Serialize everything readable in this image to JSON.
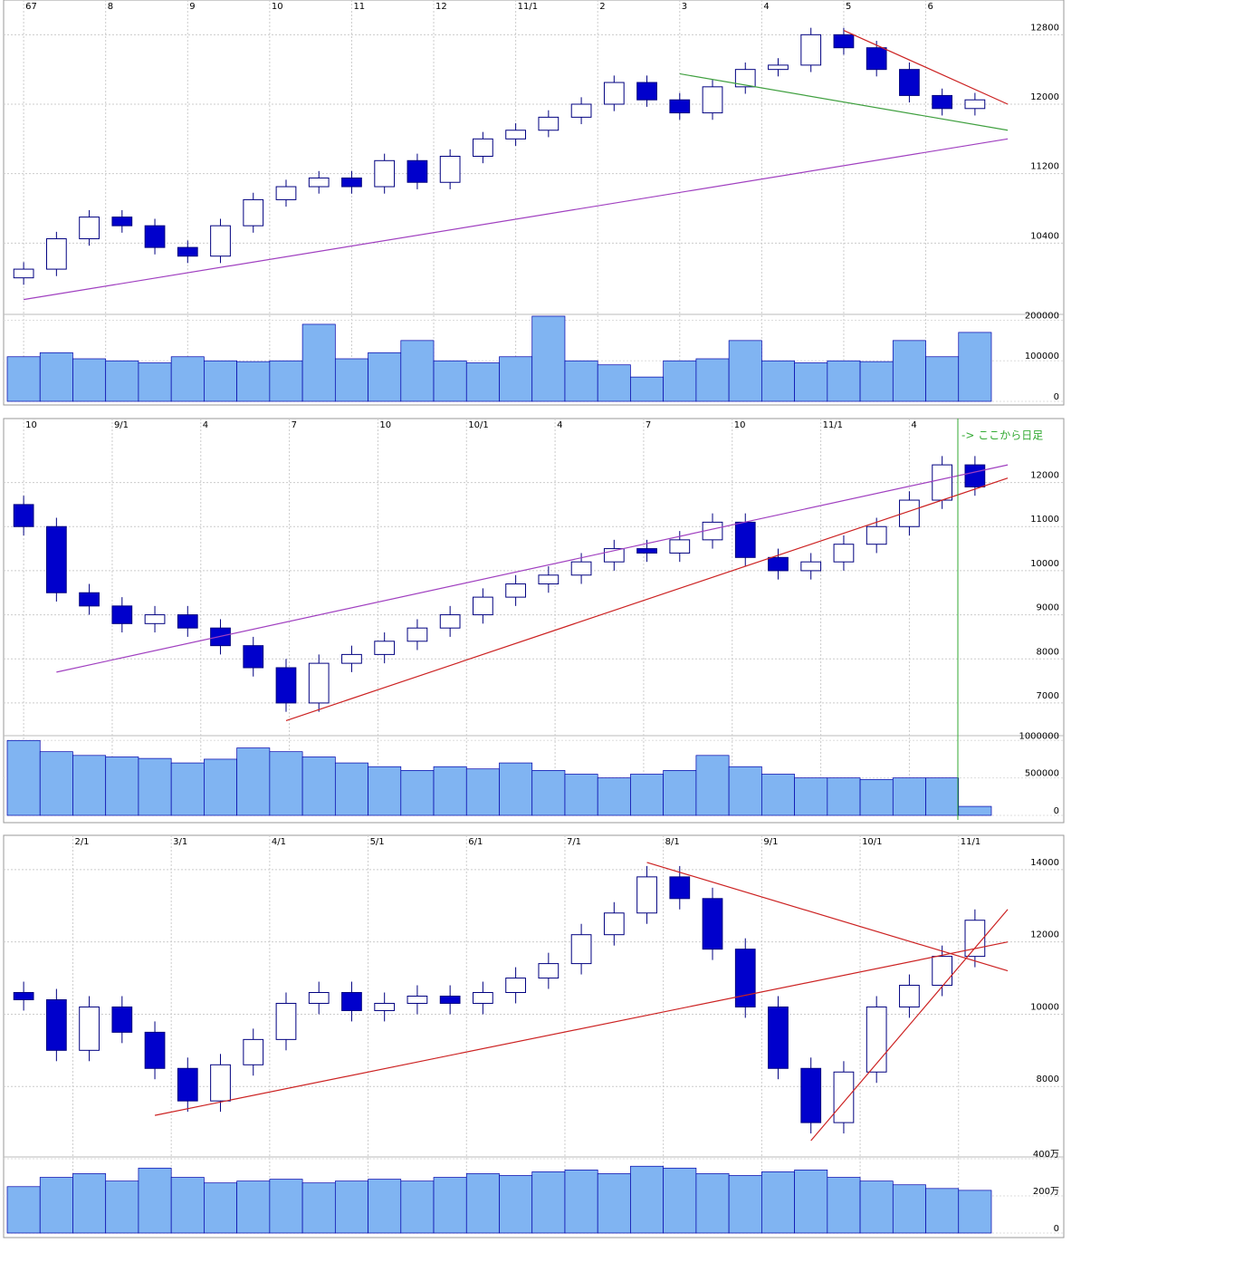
{
  "chart_data": [
    {
      "type": "candlestick",
      "xticks": [
        {
          "value": 0,
          "label": "67"
        },
        {
          "value": 2.5,
          "label": "8"
        },
        {
          "value": 5,
          "label": "9"
        },
        {
          "value": 7.5,
          "label": "10"
        },
        {
          "value": 10,
          "label": "11"
        },
        {
          "value": 12.5,
          "label": "12"
        },
        {
          "value": 15,
          "label": "11/1"
        },
        {
          "value": 17.5,
          "label": "2"
        },
        {
          "value": 20,
          "label": "3"
        },
        {
          "value": 22.5,
          "label": "4"
        },
        {
          "value": 25,
          "label": "5"
        },
        {
          "value": 27.5,
          "label": "6"
        }
      ],
      "open": [
        10000,
        10100,
        10450,
        10700,
        10600,
        10350,
        10250,
        10600,
        10900,
        11050,
        11150,
        11050,
        11350,
        11100,
        11400,
        11600,
        11700,
        11850,
        12000,
        12250,
        12050,
        11900,
        12200,
        12400,
        12450,
        12800,
        12650,
        12400,
        12100,
        11950
      ],
      "high": [
        10180,
        10530,
        10780,
        10780,
        10680,
        10430,
        10680,
        10980,
        11130,
        11230,
        11230,
        11430,
        11430,
        11480,
        11680,
        11780,
        11930,
        12080,
        12330,
        12330,
        12130,
        12280,
        12480,
        12530,
        12880,
        12880,
        12730,
        12480,
        12180,
        12130
      ],
      "low": [
        9920,
        10020,
        10370,
        10520,
        10270,
        10170,
        10170,
        10520,
        10820,
        10970,
        10970,
        10970,
        11020,
        11020,
        11320,
        11520,
        11620,
        11770,
        11920,
        11970,
        11820,
        11820,
        12120,
        12320,
        12370,
        12570,
        12320,
        12020,
        11870,
        11870
      ],
      "close": [
        10100,
        10450,
        10700,
        10600,
        10350,
        10250,
        10600,
        10900,
        11050,
        11150,
        11050,
        11350,
        11100,
        11400,
        11600,
        11700,
        11850,
        12000,
        12250,
        12050,
        11900,
        12200,
        12400,
        12450,
        12800,
        12650,
        12400,
        12100,
        11950,
        12050
      ],
      "ylim": [
        9600,
        13200
      ],
      "yticks": [
        10400,
        11200,
        12000,
        12800
      ],
      "volume": [
        110000,
        120000,
        105000,
        100000,
        95000,
        110000,
        100000,
        98000,
        100000,
        190000,
        105000,
        120000,
        150000,
        100000,
        95000,
        110000,
        210000,
        100000,
        90000,
        60000,
        100000,
        105000,
        150000,
        100000,
        95000,
        100000,
        98000,
        150000,
        110000,
        170000
      ],
      "volume_ylim": [
        0,
        210000
      ],
      "volume_yticks": [
        0,
        100000,
        200000
      ],
      "up_color": "#ffffff",
      "down_color": "#0000cc",
      "volume_color": "#80b4f2",
      "trendlines": [
        {
          "color": "#a040c0",
          "x": [
            0,
            30
          ],
          "y": [
            9750,
            11600
          ]
        },
        {
          "color": "#cc2222",
          "x": [
            25,
            30
          ],
          "y": [
            12850,
            12000
          ]
        },
        {
          "color": "#40a040",
          "x": [
            20,
            30
          ],
          "y": [
            12350,
            11700
          ]
        }
      ]
    },
    {
      "type": "candlestick",
      "xticks": [
        {
          "value": 0,
          "label": "10"
        },
        {
          "value": 2.7,
          "label": "9/1"
        },
        {
          "value": 5.4,
          "label": "4"
        },
        {
          "value": 8.1,
          "label": "7"
        },
        {
          "value": 10.8,
          "label": "10"
        },
        {
          "value": 13.5,
          "label": "10/1"
        },
        {
          "value": 16.2,
          "label": "4"
        },
        {
          "value": 18.9,
          "label": "7"
        },
        {
          "value": 21.6,
          "label": "10"
        },
        {
          "value": 24.3,
          "label": "11/1"
        },
        {
          "value": 27,
          "label": "4"
        }
      ],
      "open": [
        11500,
        11000,
        9500,
        9200,
        8800,
        9000,
        8700,
        8300,
        7800,
        7000,
        7900,
        8100,
        8400,
        8700,
        9000,
        9400,
        9700,
        9900,
        10200,
        10500,
        10400,
        10700,
        11100,
        10300,
        10000,
        10200,
        10600,
        11000,
        11600,
        12400
      ],
      "high": [
        11700,
        11200,
        9700,
        9400,
        9200,
        9200,
        8900,
        8500,
        8000,
        8100,
        8300,
        8600,
        8900,
        9200,
        9600,
        9900,
        10100,
        10400,
        10700,
        10700,
        10900,
        11300,
        11300,
        10500,
        10400,
        10800,
        11200,
        11800,
        12600,
        12600
      ],
      "low": [
        10800,
        9300,
        9000,
        8600,
        8600,
        8500,
        8100,
        7600,
        6800,
        6800,
        7700,
        7900,
        8200,
        8500,
        8800,
        9200,
        9500,
        9700,
        10000,
        10200,
        10200,
        10500,
        10100,
        9800,
        9800,
        10000,
        10400,
        10800,
        11400,
        11700
      ],
      "close": [
        11000,
        9500,
        9200,
        8800,
        9000,
        8700,
        8300,
        7800,
        7000,
        7900,
        8100,
        8400,
        8700,
        9000,
        9400,
        9700,
        9900,
        10200,
        10500,
        10400,
        10700,
        11100,
        10300,
        10000,
        10200,
        10600,
        11000,
        11600,
        12400,
        11900
      ],
      "ylim": [
        6300,
        13450
      ],
      "yticks": [
        7000,
        8000,
        9000,
        10000,
        11000,
        12000
      ],
      "volume": [
        1000000,
        850000,
        800000,
        780000,
        760000,
        700000,
        750000,
        900000,
        850000,
        780000,
        700000,
        650000,
        600000,
        650000,
        620000,
        700000,
        600000,
        550000,
        500000,
        550000,
        600000,
        800000,
        650000,
        550000,
        500000,
        500000,
        480000,
        500000,
        500000,
        120000
      ],
      "volume_ylim": [
        0,
        1100000
      ],
      "volume_yticks": [
        0,
        500000,
        1000000
      ],
      "up_color": "#ffffff",
      "down_color": "#0000cc",
      "volume_color": "#80b4f2",
      "annotation": "-> ここから日足",
      "trendlines": [
        {
          "color": "#cc2222",
          "x": [
            8,
            30
          ],
          "y": [
            6600,
            12100
          ]
        },
        {
          "color": "#a040c0",
          "x": [
            1,
            30
          ],
          "y": [
            7700,
            12400
          ]
        }
      ]
    },
    {
      "type": "candlestick",
      "xticks": [
        {
          "value": 1.5,
          "label": "2/1"
        },
        {
          "value": 4.5,
          "label": "3/1"
        },
        {
          "value": 7.5,
          "label": "4/1"
        },
        {
          "value": 10.5,
          "label": "5/1"
        },
        {
          "value": 13.5,
          "label": "6/1"
        },
        {
          "value": 16.5,
          "label": "7/1"
        },
        {
          "value": 19.5,
          "label": "8/1"
        },
        {
          "value": 22.5,
          "label": "9/1"
        },
        {
          "value": 25.5,
          "label": "10/1"
        },
        {
          "value": 28.5,
          "label": "11/1"
        }
      ],
      "open": [
        10600,
        10400,
        9000,
        10200,
        9500,
        8500,
        7600,
        8600,
        9300,
        10300,
        10600,
        10100,
        10300,
        10500,
        10300,
        10600,
        11000,
        11400,
        12200,
        12800,
        13800,
        13200,
        11800,
        10200,
        8500,
        7000,
        8400,
        10200,
        10800,
        11600
      ],
      "high": [
        10900,
        10700,
        10500,
        10500,
        9800,
        8800,
        8900,
        9600,
        10600,
        10900,
        10900,
        10600,
        10800,
        10800,
        10900,
        11300,
        11700,
        12500,
        13100,
        14100,
        14100,
        13500,
        12100,
        10500,
        8800,
        8700,
        10500,
        11100,
        11900,
        12900
      ],
      "low": [
        10100,
        8700,
        8700,
        9200,
        8200,
        7300,
        7300,
        8300,
        9000,
        10000,
        9800,
        9800,
        10000,
        10000,
        10000,
        10300,
        10700,
        11100,
        11900,
        12500,
        12900,
        11500,
        9900,
        8200,
        6700,
        6700,
        8100,
        9900,
        10500,
        11300
      ],
      "close": [
        10400,
        9000,
        10200,
        9500,
        8500,
        7600,
        8600,
        9300,
        10300,
        10600,
        10100,
        10300,
        10500,
        10300,
        10600,
        11000,
        11400,
        12200,
        12800,
        13800,
        13200,
        11800,
        10200,
        8500,
        7000,
        8400,
        10200,
        10800,
        11600,
        12600
      ],
      "ylim": [
        6100,
        14950
      ],
      "yticks": [
        8000,
        10000,
        12000,
        14000
      ],
      "volume": [
        2500000,
        3000000,
        3200000,
        2800000,
        3500000,
        3000000,
        2700000,
        2800000,
        2900000,
        2700000,
        2800000,
        2900000,
        2800000,
        3000000,
        3200000,
        3100000,
        3300000,
        3400000,
        3200000,
        3600000,
        3500000,
        3200000,
        3100000,
        3300000,
        3400000,
        3000000,
        2800000,
        2600000,
        2400000,
        2300000
      ],
      "volume_ylim": [
        0,
        4100000
      ],
      "volume_yticks": [
        0,
        {
          "value": 2000000,
          "label": "200万"
        },
        {
          "value": 4000000,
          "label": "400万"
        }
      ],
      "up_color": "#ffffff",
      "down_color": "#0000cc",
      "volume_color": "#80b4f2",
      "trendlines": [
        {
          "color": "#cc2222",
          "x": [
            4,
            30
          ],
          "y": [
            7200,
            12000
          ]
        },
        {
          "color": "#cc2222",
          "x": [
            19,
            30
          ],
          "y": [
            14200,
            11200
          ]
        },
        {
          "color": "#cc2222",
          "x": [
            24,
            30
          ],
          "y": [
            6500,
            12900
          ]
        }
      ]
    }
  ]
}
